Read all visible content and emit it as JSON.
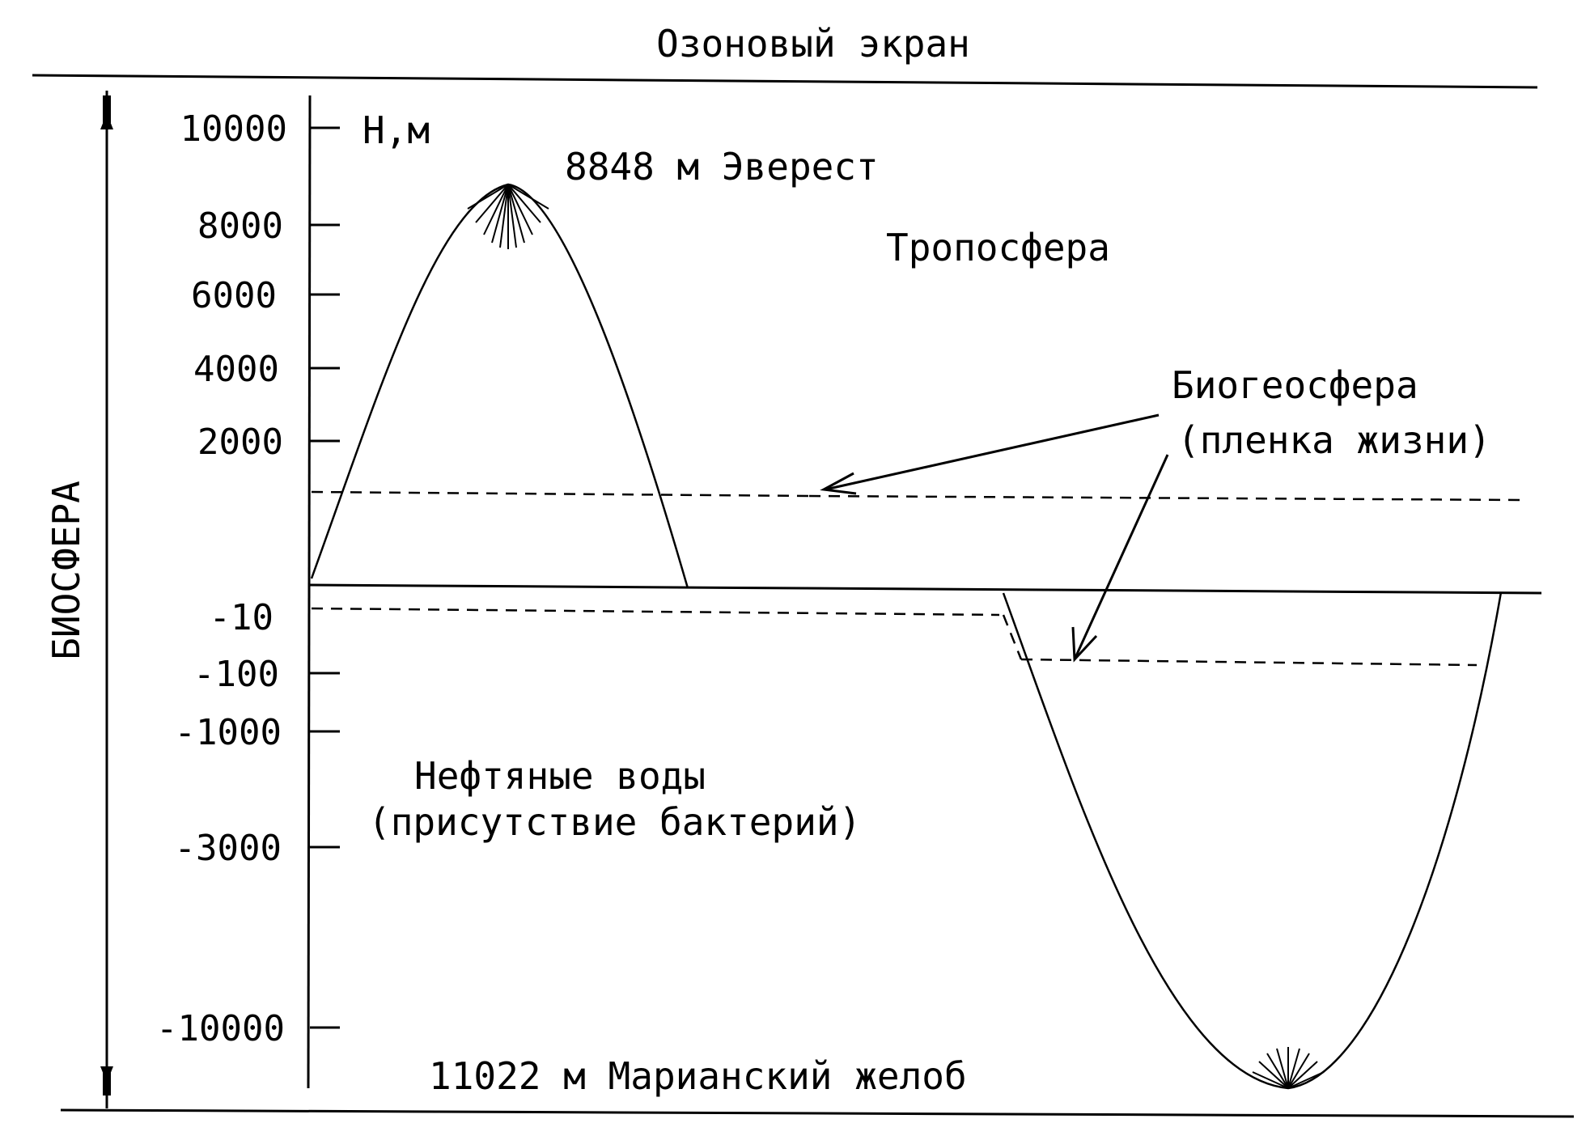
{
  "labels": {
    "ozone": "Озоновый экран",
    "axis_unit": "Н,м",
    "everest": "8848 м Эверест",
    "troposphere": "Тропосфера",
    "biogeosphere_line1": "Биогеосфера",
    "biogeosphere_line2": "(пленка жизни)",
    "oil_waters_line1": "Нефтяные воды",
    "oil_waters_line2": "(присутствие бактерий)",
    "mariana": "11022 м Марианский желоб",
    "biosphere": "БИОСФЕРА"
  },
  "ticks_positive": [
    "10000",
    "8000",
    "6000",
    "4000",
    "2000"
  ],
  "ticks_negative": [
    "-10",
    "-100",
    "-1000",
    "-3000",
    "-10000"
  ],
  "colors": {
    "ink": "#000000",
    "background": "#ffffff"
  }
}
